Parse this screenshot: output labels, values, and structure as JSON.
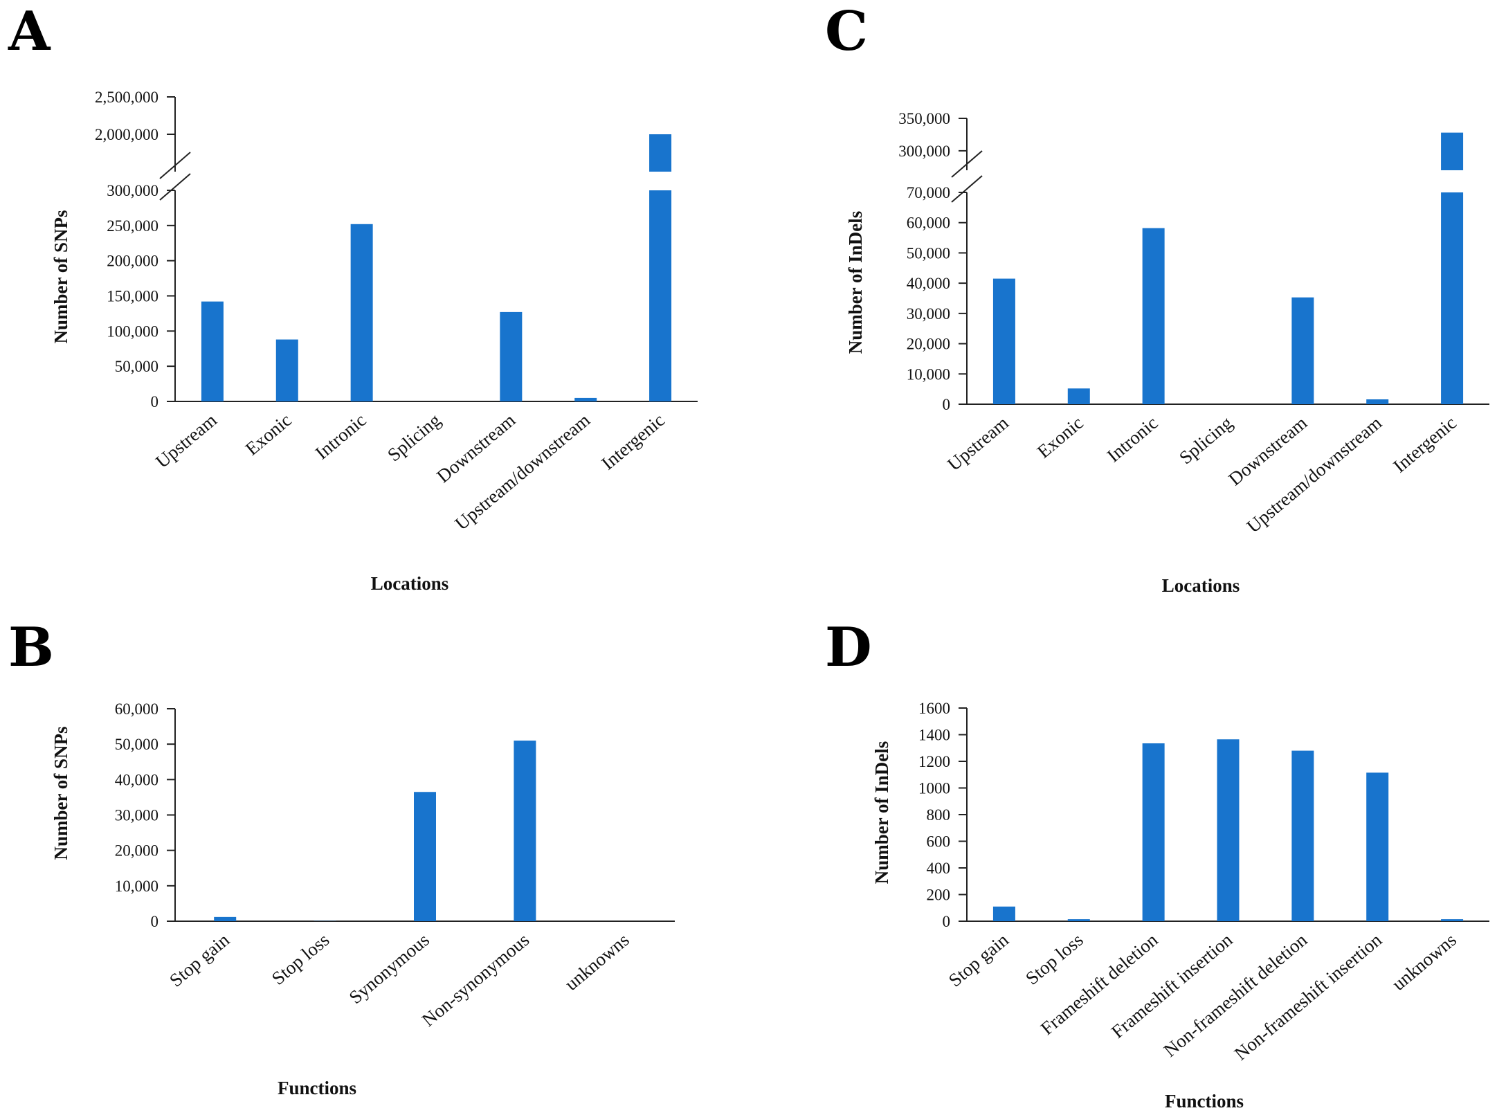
{
  "figure": {
    "panels": [
      "A",
      "C",
      "B",
      "D"
    ]
  },
  "chart_data": [
    {
      "id": "A",
      "label": "A",
      "type": "bar",
      "title": "",
      "xlabel": "Locations",
      "ylabel": "Number of  SNPs",
      "categories": [
        "Upstream",
        "Exonic",
        "Intronic",
        "Splicing",
        "Downstream",
        "Upstream/downstream",
        "Intergenic"
      ],
      "values": [
        142000,
        88000,
        252000,
        0,
        127000,
        5000,
        2000000
      ],
      "broken_axis": true,
      "lower_ylim": [
        0,
        300000
      ],
      "lower_ticks": [
        0,
        50000,
        100000,
        150000,
        200000,
        250000,
        300000
      ],
      "lower_tick_labels": [
        "0",
        "50,000",
        "100,000",
        "150,000",
        "200,000",
        "250,000",
        "300,000"
      ],
      "upper_ylim": [
        1500000,
        2500000
      ],
      "upper_ticks": [
        2000000,
        2500000
      ],
      "upper_tick_labels": [
        "2,000,000",
        "2,500,000"
      ],
      "color": "#1874cd"
    },
    {
      "id": "C",
      "label": "C",
      "type": "bar",
      "title": "",
      "xlabel": "Locations",
      "ylabel": "Number of  InDels",
      "categories": [
        "Upstream",
        "Exonic",
        "Intronic",
        "Splicing",
        "Downstream",
        "Upstream/downstream",
        "Intergenic"
      ],
      "values": [
        41500,
        5200,
        58200,
        0,
        35300,
        1600,
        328000
      ],
      "broken_axis": true,
      "lower_ylim": [
        0,
        70000
      ],
      "lower_ticks": [
        0,
        10000,
        20000,
        30000,
        40000,
        50000,
        60000,
        70000
      ],
      "lower_tick_labels": [
        "0",
        "10,000",
        "20,000",
        "30,000",
        "40,000",
        "50,000",
        "60,000",
        "70,000"
      ],
      "upper_ylim": [
        270000,
        350000
      ],
      "upper_ticks": [
        300000,
        350000
      ],
      "upper_tick_labels": [
        "300,000",
        "350,000"
      ],
      "color": "#1874cd"
    },
    {
      "id": "B",
      "label": "B",
      "type": "bar",
      "title": "",
      "xlabel": "Functions",
      "ylabel": "Number of  SNPs",
      "categories": [
        "Stop gain",
        "Stop loss",
        "Synonymous",
        "Non-synonymous",
        "unknowns"
      ],
      "values": [
        1200,
        60,
        36500,
        51000,
        0
      ],
      "ylim": [
        0,
        60000
      ],
      "ticks": [
        0,
        10000,
        20000,
        30000,
        40000,
        50000,
        60000
      ],
      "tick_labels": [
        "0",
        "10,000",
        "20,000",
        "30,000",
        "40,000",
        "50,000",
        "60,000"
      ],
      "color": "#1874cd"
    },
    {
      "id": "D",
      "label": "D",
      "type": "bar",
      "title": "",
      "xlabel": "Functions",
      "ylabel": "Number of  InDels",
      "categories": [
        "Stop gain",
        "Stop loss",
        "Frameshift deletion",
        "Frameshift insertion",
        "Non-frameshift deletion",
        "Non-frameshift insertion",
        "unknowns"
      ],
      "values": [
        110,
        15,
        1335,
        1365,
        1280,
        1115,
        15
      ],
      "ylim": [
        0,
        1600
      ],
      "ticks": [
        0,
        200,
        400,
        600,
        800,
        1000,
        1200,
        1400,
        1600
      ],
      "tick_labels": [
        "0",
        "200",
        "400",
        "600",
        "800",
        "1000",
        "1200",
        "1400",
        "1600"
      ],
      "color": "#1874cd"
    }
  ]
}
